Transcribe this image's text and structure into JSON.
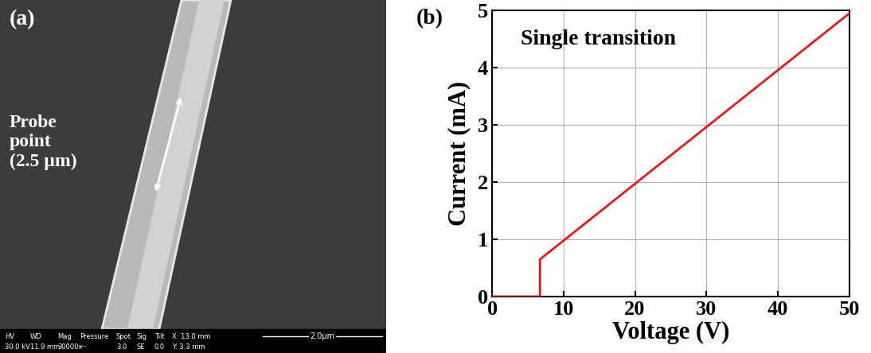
{
  "image_panel": {
    "label": "(a)",
    "annotation": "Probe\npoint\n(2.5 µm)",
    "info_bar": {
      "headers": [
        "HV",
        "WD",
        "Mag",
        "Pressure",
        "Spot",
        "Sig",
        "Tilt",
        "X: 13.0 mm"
      ],
      "values": [
        "30.0 kV",
        "11.9 mm",
        "30000x",
        "---",
        "3.0",
        "SE",
        "0.0",
        "Y: 3.3 mm"
      ],
      "scale_bar": "2.0µm"
    }
  },
  "chart_data": {
    "type": "line",
    "annotations": [
      "(b)",
      "Single transition"
    ],
    "x_label": "Voltage (V)",
    "y_label": "Current (mA)",
    "x": [
      0,
      6.7,
      6.7,
      50
    ],
    "values": [
      0,
      0,
      0.65,
      4.95
    ],
    "color": "#e8141b",
    "xlim": [
      0,
      50
    ],
    "xticks": [
      0,
      10,
      20,
      30,
      40,
      50
    ],
    "ylim": [
      0,
      5
    ],
    "yticks": [
      0,
      1,
      2,
      3,
      4,
      5
    ],
    "grid": true
  }
}
